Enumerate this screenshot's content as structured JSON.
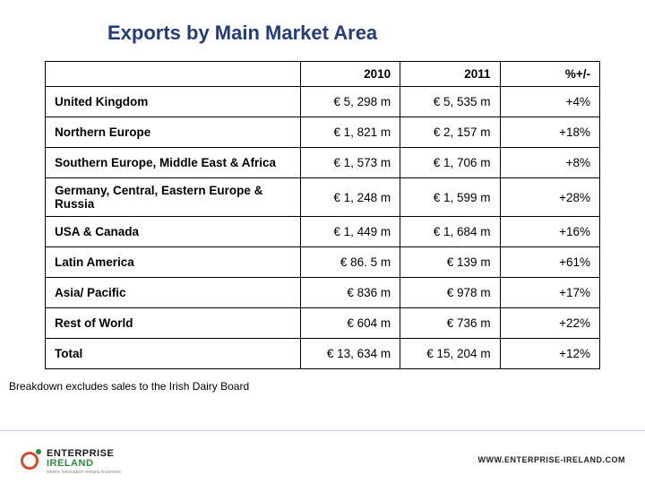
{
  "title": "Exports by Main Market Area",
  "table": {
    "columns": [
      "",
      "2010",
      "2011",
      "%+/-"
    ],
    "rows": [
      {
        "region": "United Kingdom",
        "y2010": "€ 5, 298 m",
        "y2011": "€ 5, 535 m",
        "pct": "+4%"
      },
      {
        "region": "Northern Europe",
        "y2010": "€ 1, 821 m",
        "y2011": "€ 2, 157 m",
        "pct": "+18%"
      },
      {
        "region": "Southern Europe, Middle East & Africa",
        "y2010": "€ 1, 573 m",
        "y2011": "€ 1, 706 m",
        "pct": "+8%"
      },
      {
        "region": "Germany, Central, Eastern Europe & Russia",
        "y2010": "€ 1, 248 m",
        "y2011": "€ 1, 599 m",
        "pct": "+28%"
      },
      {
        "region": "USA & Canada",
        "y2010": "€ 1, 449 m",
        "y2011": "€ 1, 684 m",
        "pct": "+16%"
      },
      {
        "region": "Latin America",
        "y2010": "€ 86. 5 m",
        "y2011": "€ 139 m",
        "pct": "+61%"
      },
      {
        "region": "Asia/ Pacific",
        "y2010": "€ 836 m",
        "y2011": "€ 978 m",
        "pct": "+17%"
      },
      {
        "region": "Rest of World",
        "y2010": "€ 604 m",
        "y2011": "€ 736 m",
        "pct": "+22%"
      },
      {
        "region": "Total",
        "y2010": "€ 13, 634 m",
        "y2011": "€ 15, 204 m",
        "pct": "+12%"
      }
    ],
    "border_color": "#000000",
    "font_size": 13.5,
    "header_bold": true
  },
  "footnote": "Breakdown excludes sales to the Irish Dairy Board",
  "logo": {
    "line1": "ENTERPRISE",
    "line2": "IRELAND",
    "tagline": "where innovation means business",
    "ring_color": "#d94a2b",
    "dot_color": "#2a8a3a"
  },
  "website": "WWW.ENTERPRISE-IRELAND.COM",
  "colors": {
    "title": "#263b7a",
    "background": "#ffffff",
    "footer_line": "#c9d2e6"
  }
}
